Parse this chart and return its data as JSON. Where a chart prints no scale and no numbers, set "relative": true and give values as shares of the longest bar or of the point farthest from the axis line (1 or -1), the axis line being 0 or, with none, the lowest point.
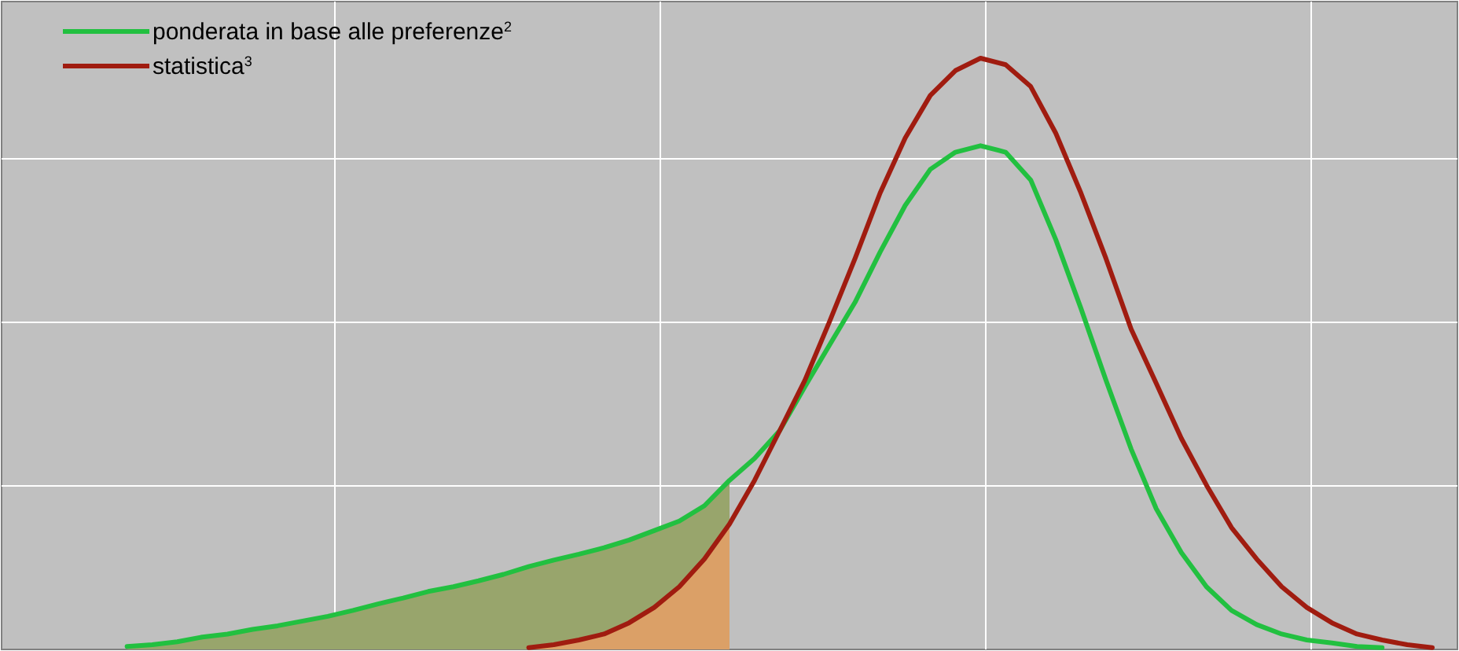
{
  "chart_data": {
    "type": "line",
    "relative": true,
    "grid": true,
    "legend": "top left",
    "categories": [
      null,
      null,
      null,
      null,
      null,
      null,
      null,
      null,
      null,
      null,
      null,
      null,
      null,
      null,
      null,
      null,
      null,
      null,
      null,
      null,
      null,
      null,
      null,
      null,
      null,
      null,
      null,
      null,
      null,
      null,
      null,
      null,
      null,
      null,
      null,
      null,
      null,
      null,
      null,
      null,
      null,
      null,
      null,
      null,
      null,
      null,
      null,
      null,
      null,
      null,
      null,
      null,
      null,
      null,
      null,
      null,
      null,
      null,
      null
    ],
    "series": [
      {
        "type": "area",
        "color": "#98a56c",
        "values": [
          null,
          null,
          null,
          null,
          null,
          0.005,
          0.008,
          0.013,
          0.021,
          0.026,
          0.034,
          0.04,
          0.048,
          0.056,
          0.066,
          0.077,
          0.087,
          0.098,
          0.106,
          0.116,
          0.127,
          0.14,
          0.151,
          0.161,
          0.172,
          0.185,
          0.201,
          0.217,
          0.243,
          0.286,
          null,
          null,
          null,
          null,
          null,
          null,
          null,
          null,
          null,
          null,
          null,
          null,
          null,
          null,
          null,
          null,
          null,
          null,
          null,
          null,
          null,
          null,
          null,
          null,
          null,
          null,
          null,
          null,
          null
        ]
      },
      {
        "type": "area",
        "color": "#dba067",
        "values": [
          null,
          null,
          null,
          null,
          null,
          null,
          null,
          null,
          null,
          null,
          null,
          null,
          null,
          null,
          null,
          null,
          null,
          null,
          null,
          null,
          null,
          0.003,
          0.008,
          0.016,
          0.026,
          0.045,
          0.071,
          0.106,
          0.153,
          0.212,
          null,
          null,
          null,
          null,
          null,
          null,
          null,
          null,
          null,
          null,
          null,
          null,
          null,
          null,
          null,
          null,
          null,
          null,
          null,
          null,
          null,
          null,
          null,
          null,
          null,
          null,
          null,
          null,
          null
        ]
      },
      {
        "name": "ponderata in base alle preferenze$^{2}$",
        "color": "#22c040",
        "values": [
          null,
          null,
          null,
          null,
          null,
          0.005,
          0.008,
          0.013,
          0.021,
          0.026,
          0.034,
          0.04,
          0.048,
          0.056,
          0.066,
          0.077,
          0.087,
          0.098,
          0.106,
          0.116,
          0.127,
          0.14,
          0.151,
          0.161,
          0.172,
          0.185,
          0.201,
          0.217,
          0.243,
          0.286,
          0.323,
          0.37,
          0.444,
          0.516,
          0.587,
          0.672,
          0.751,
          0.812,
          0.841,
          0.852,
          0.841,
          0.794,
          0.693,
          0.577,
          0.455,
          0.339,
          0.238,
          0.164,
          0.106,
          0.066,
          0.042,
          0.026,
          0.016,
          0.011,
          0.005,
          0.003,
          null,
          null,
          null
        ]
      },
      {
        "name": "statistica$^{3}$",
        "color": "#a01c10",
        "values": [
          null,
          null,
          null,
          null,
          null,
          null,
          null,
          null,
          null,
          null,
          null,
          null,
          null,
          null,
          null,
          null,
          null,
          null,
          null,
          null,
          null,
          0.003,
          0.008,
          0.016,
          0.026,
          0.045,
          0.071,
          0.106,
          0.153,
          0.212,
          0.286,
          0.37,
          0.455,
          0.556,
          0.661,
          0.772,
          0.865,
          0.937,
          0.979,
          1,
          0.989,
          0.952,
          0.873,
          0.772,
          0.661,
          0.542,
          0.45,
          0.357,
          0.278,
          0.206,
          0.153,
          0.106,
          0.071,
          0.045,
          0.026,
          0.016,
          0.008,
          0.003,
          null
        ]
      }
    ]
  }
}
